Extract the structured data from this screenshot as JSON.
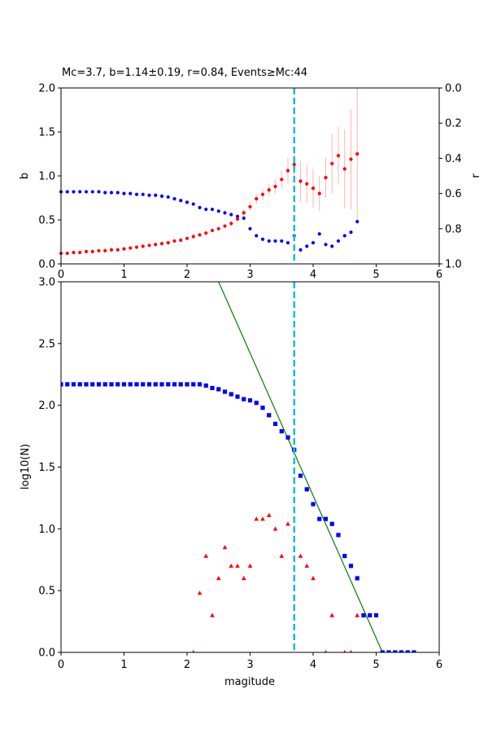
{
  "figure": {
    "title": "Mc=3.7, b=1.14±0.19, r=0.84, Events≥Mc:44"
  },
  "colors": {
    "b_series": "#ff0000",
    "r_series": "#0000ff",
    "error_bars": "#ffb3b3",
    "mc_line": "#17becf",
    "fit_line": "#008000",
    "cumulative": "#0000ff",
    "non_cumulative": "#ff0000"
  },
  "chart_data": [
    {
      "type": "scatter",
      "panel": "top",
      "xlim": [
        0,
        6
      ],
      "ylim": [
        0,
        2
      ],
      "y2lim": [
        0,
        1
      ],
      "y2_inverted": true,
      "ylabel": "b",
      "y2label": "r",
      "x_ticks": [
        "0",
        "1",
        "2",
        "3",
        "4",
        "5",
        "6"
      ],
      "y_ticks": [
        "0.0",
        "0.5",
        "1.0",
        "1.5",
        "2.0"
      ],
      "y2_ticks": [
        "0.0",
        "0.2",
        "0.4",
        "0.6",
        "0.8",
        "1.0"
      ],
      "mc": 3.7,
      "series": [
        {
          "name": "b",
          "axis": "left",
          "x": [
            0.0,
            0.1,
            0.2,
            0.3,
            0.4,
            0.5,
            0.6,
            0.7,
            0.8,
            0.9,
            1.0,
            1.1,
            1.2,
            1.3,
            1.4,
            1.5,
            1.6,
            1.7,
            1.8,
            1.9,
            2.0,
            2.1,
            2.2,
            2.3,
            2.4,
            2.5,
            2.6,
            2.7,
            2.8,
            2.9,
            3.0,
            3.1,
            3.2,
            3.3,
            3.4,
            3.5,
            3.6,
            3.7,
            3.8,
            3.9,
            4.0,
            4.1,
            4.2,
            4.3,
            4.4,
            4.5,
            4.6,
            4.7
          ],
          "y": [
            0.12,
            0.12,
            0.13,
            0.13,
            0.14,
            0.14,
            0.15,
            0.15,
            0.16,
            0.16,
            0.17,
            0.18,
            0.19,
            0.2,
            0.21,
            0.22,
            0.23,
            0.24,
            0.26,
            0.27,
            0.29,
            0.31,
            0.33,
            0.35,
            0.38,
            0.4,
            0.43,
            0.46,
            0.51,
            0.58,
            0.65,
            0.74,
            0.79,
            0.84,
            0.88,
            0.96,
            1.06,
            1.13,
            0.94,
            0.91,
            0.86,
            0.8,
            0.98,
            1.14,
            1.23,
            1.08,
            1.19,
            1.25
          ],
          "err": [
            0.01,
            0.01,
            0.01,
            0.01,
            0.01,
            0.01,
            0.01,
            0.01,
            0.01,
            0.01,
            0.01,
            0.01,
            0.01,
            0.01,
            0.01,
            0.01,
            0.01,
            0.01,
            0.01,
            0.01,
            0.01,
            0.01,
            0.01,
            0.01,
            0.02,
            0.02,
            0.02,
            0.03,
            0.03,
            0.04,
            0.05,
            0.06,
            0.07,
            0.07,
            0.08,
            0.1,
            0.15,
            0.19,
            0.23,
            0.22,
            0.22,
            0.2,
            0.23,
            0.34,
            0.33,
            0.45,
            0.57,
            0.75
          ]
        },
        {
          "name": "r",
          "axis": "right",
          "x": [
            0.0,
            0.1,
            0.2,
            0.3,
            0.4,
            0.5,
            0.6,
            0.7,
            0.8,
            0.9,
            1.0,
            1.1,
            1.2,
            1.3,
            1.4,
            1.5,
            1.6,
            1.7,
            1.8,
            1.9,
            2.0,
            2.1,
            2.2,
            2.3,
            2.4,
            2.5,
            2.6,
            2.7,
            2.8,
            2.9,
            3.0,
            3.1,
            3.2,
            3.3,
            3.4,
            3.5,
            3.6,
            3.7,
            3.8,
            3.9,
            4.0,
            4.1,
            4.2,
            4.3,
            4.4,
            4.5,
            4.6,
            4.7
          ],
          "y": [
            0.59,
            0.59,
            0.59,
            0.59,
            0.59,
            0.59,
            0.59,
            0.595,
            0.595,
            0.595,
            0.6,
            0.6,
            0.605,
            0.605,
            0.61,
            0.61,
            0.615,
            0.62,
            0.63,
            0.64,
            0.65,
            0.66,
            0.68,
            0.69,
            0.69,
            0.7,
            0.71,
            0.72,
            0.73,
            0.74,
            0.8,
            0.84,
            0.86,
            0.87,
            0.87,
            0.87,
            0.88,
            0.84,
            0.92,
            0.9,
            0.88,
            0.83,
            0.89,
            0.9,
            0.87,
            0.84,
            0.82,
            0.76
          ]
        }
      ]
    },
    {
      "type": "scatter",
      "panel": "bottom",
      "xlabel": "magitude",
      "ylabel": "log10(N)",
      "xlim": [
        0,
        6
      ],
      "ylim": [
        0,
        3
      ],
      "x_ticks": [
        "0",
        "1",
        "2",
        "3",
        "4",
        "5",
        "6"
      ],
      "y_ticks": [
        "0.0",
        "0.5",
        "1.0",
        "1.5",
        "2.0",
        "2.5",
        "3.0"
      ],
      "mc": 3.7,
      "fit_line": {
        "x": [
          2.5,
          5.1
        ],
        "y": [
          3.0,
          0.0
        ]
      },
      "series": [
        {
          "name": "cumulative",
          "marker": "square",
          "x": [
            0.0,
            0.1,
            0.2,
            0.3,
            0.4,
            0.5,
            0.6,
            0.7,
            0.8,
            0.9,
            1.0,
            1.1,
            1.2,
            1.3,
            1.4,
            1.5,
            1.6,
            1.7,
            1.8,
            1.9,
            2.0,
            2.1,
            2.2,
            2.3,
            2.4,
            2.5,
            2.6,
            2.7,
            2.8,
            2.9,
            3.0,
            3.1,
            3.2,
            3.3,
            3.4,
            3.5,
            3.6,
            3.7,
            3.8,
            3.9,
            4.0,
            4.1,
            4.2,
            4.3,
            4.4,
            4.5,
            4.6,
            4.7,
            4.8,
            4.9,
            5.0,
            5.1,
            5.2,
            5.3,
            5.4,
            5.5,
            5.6
          ],
          "y": [
            2.17,
            2.17,
            2.17,
            2.17,
            2.17,
            2.17,
            2.17,
            2.17,
            2.17,
            2.17,
            2.17,
            2.17,
            2.17,
            2.17,
            2.17,
            2.17,
            2.17,
            2.17,
            2.17,
            2.17,
            2.17,
            2.17,
            2.17,
            2.16,
            2.14,
            2.13,
            2.11,
            2.09,
            2.07,
            2.05,
            2.04,
            2.02,
            1.98,
            1.92,
            1.85,
            1.79,
            1.74,
            1.64,
            1.43,
            1.32,
            1.2,
            1.08,
            1.08,
            1.04,
            0.95,
            0.78,
            0.7,
            0.6,
            0.3,
            0.3,
            0.3,
            0.0,
            0.0,
            0.0,
            0.0,
            0.0,
            0.0
          ]
        },
        {
          "name": "non-cumulative",
          "marker": "triangle",
          "x": [
            2.1,
            2.2,
            2.3,
            2.4,
            2.5,
            2.6,
            2.7,
            2.8,
            2.9,
            3.0,
            3.1,
            3.2,
            3.3,
            3.4,
            3.5,
            3.6,
            3.8,
            3.9,
            4.0,
            4.2,
            4.3,
            4.5,
            4.6,
            4.7
          ],
          "y": [
            0.0,
            0.48,
            0.78,
            0.3,
            0.6,
            0.85,
            0.7,
            0.7,
            0.6,
            0.7,
            1.08,
            1.08,
            1.11,
            1.0,
            0.78,
            1.04,
            0.78,
            0.7,
            0.6,
            0.0,
            0.3,
            0.0,
            0.0,
            0.3
          ]
        }
      ]
    }
  ]
}
